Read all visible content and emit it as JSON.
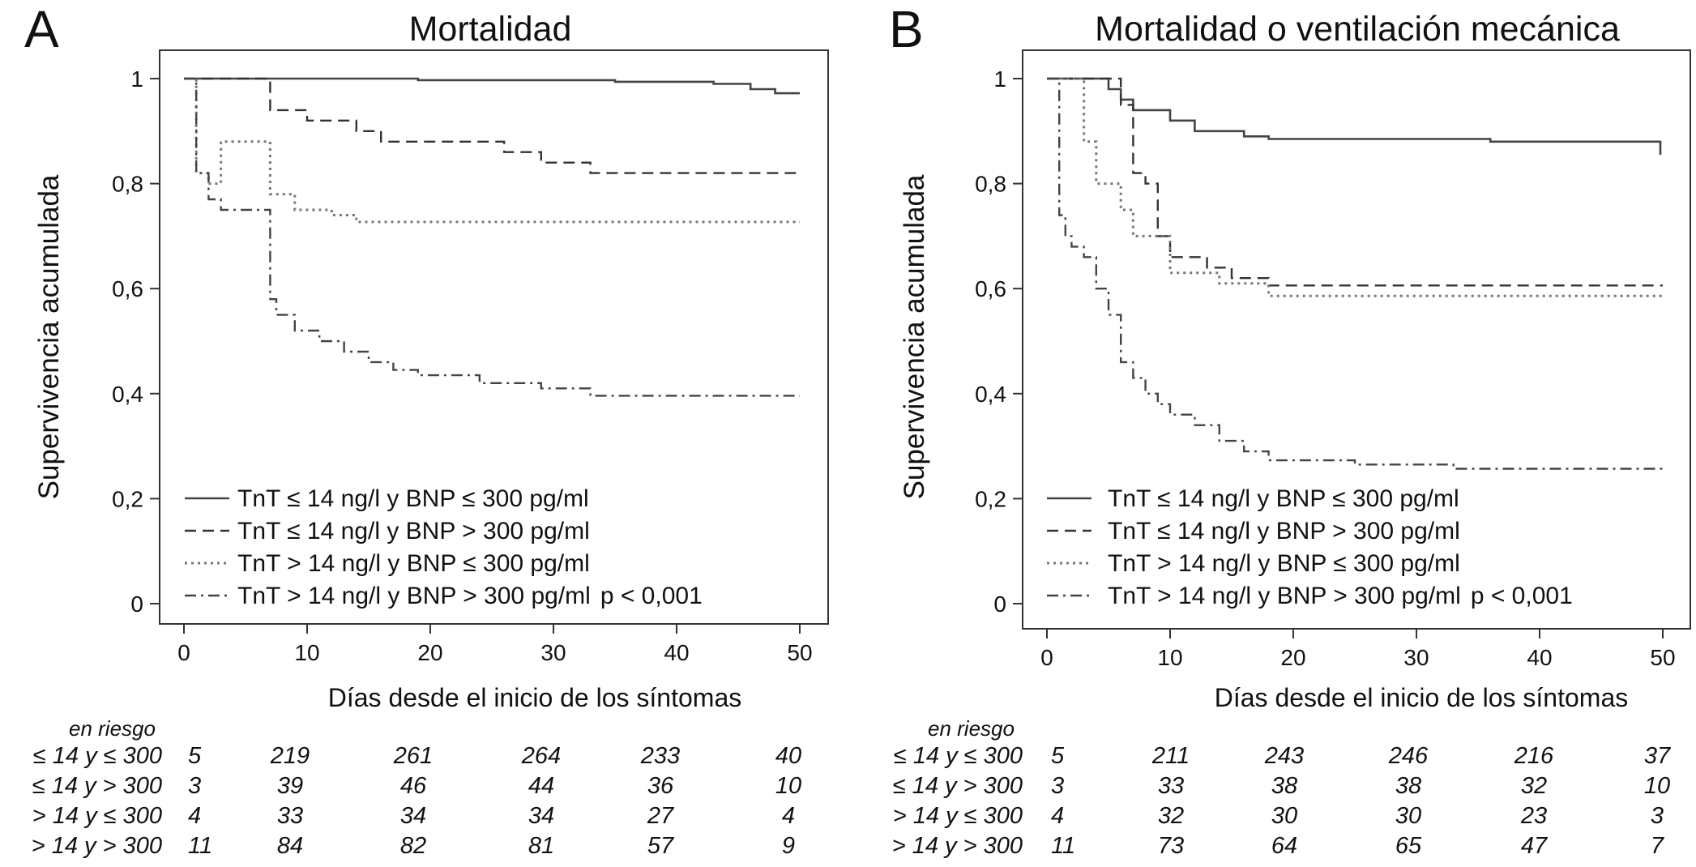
{
  "chart_data": [
    {
      "type": "line",
      "panel_letter": "A",
      "title": "Mortalidad",
      "xlabel": "Días desde el inicio de los síntomas",
      "ylabel": "Supervivencia acumulada",
      "xlim": [
        0,
        50
      ],
      "ylim": [
        0,
        1
      ],
      "xticks": [
        "0",
        "10",
        "20",
        "30",
        "40",
        "50"
      ],
      "yticks": [
        "0",
        "0,2",
        "0,4",
        "0,6",
        "0,8",
        "1"
      ],
      "legend_location": "bottom-left",
      "p_value": "p < 0,001",
      "series": [
        {
          "name": "TnT ≤ 14 ng/l y BNP ≤ 300 pg/ml",
          "style": "solid",
          "points": [
            [
              0,
              1
            ],
            [
              19,
              1
            ],
            [
              19,
              0.997
            ],
            [
              35,
              0.997
            ],
            [
              35,
              0.994
            ],
            [
              43,
              0.994
            ],
            [
              43,
              0.99
            ],
            [
              46,
              0.99
            ],
            [
              46,
              0.98
            ],
            [
              48,
              0.98
            ],
            [
              48,
              0.972
            ],
            [
              50,
              0.972
            ]
          ]
        },
        {
          "name": "TnT ≤ 14 ng/l y BNP > 300 pg/ml",
          "style": "dashed",
          "points": [
            [
              0,
              1
            ],
            [
              7,
              1
            ],
            [
              7,
              0.94
            ],
            [
              10,
              0.94
            ],
            [
              10,
              0.92
            ],
            [
              14,
              0.92
            ],
            [
              14,
              0.9
            ],
            [
              16,
              0.9
            ],
            [
              16,
              0.88
            ],
            [
              26,
              0.88
            ],
            [
              26,
              0.86
            ],
            [
              29,
              0.86
            ],
            [
              29,
              0.84
            ],
            [
              33,
              0.84
            ],
            [
              33,
              0.82
            ],
            [
              50,
              0.82
            ]
          ]
        },
        {
          "name": "TnT > 14 ng/l y BNP ≤ 300 pg/ml",
          "style": "dotted",
          "points": [
            [
              0,
              1
            ],
            [
              1,
              1
            ],
            [
              1,
              0.82
            ],
            [
              2,
              0.82
            ],
            [
              2,
              0.8
            ],
            [
              3,
              0.8
            ],
            [
              3,
              0.88
            ],
            [
              7,
              0.88
            ],
            [
              7,
              0.78
            ],
            [
              9,
              0.78
            ],
            [
              9,
              0.75
            ],
            [
              12,
              0.75
            ],
            [
              12,
              0.74
            ],
            [
              14,
              0.74
            ],
            [
              14,
              0.727
            ],
            [
              50,
              0.727
            ]
          ]
        },
        {
          "name": "TnT > 14 ng/l y BNP > 300 pg/ml",
          "style": "dashdot",
          "points": [
            [
              0,
              1
            ],
            [
              1,
              1
            ],
            [
              1,
              0.82
            ],
            [
              2,
              0.82
            ],
            [
              2,
              0.77
            ],
            [
              3,
              0.77
            ],
            [
              3,
              0.75
            ],
            [
              7,
              0.75
            ],
            [
              7,
              0.58
            ],
            [
              7.5,
              0.58
            ],
            [
              7.5,
              0.55
            ],
            [
              9,
              0.55
            ],
            [
              9,
              0.52
            ],
            [
              11,
              0.52
            ],
            [
              11,
              0.5
            ],
            [
              13,
              0.5
            ],
            [
              13,
              0.48
            ],
            [
              15,
              0.48
            ],
            [
              15,
              0.46
            ],
            [
              17,
              0.46
            ],
            [
              17,
              0.445
            ],
            [
              19,
              0.445
            ],
            [
              19,
              0.435
            ],
            [
              24,
              0.435
            ],
            [
              24,
              0.42
            ],
            [
              29,
              0.42
            ],
            [
              29,
              0.41
            ],
            [
              33,
              0.41
            ],
            [
              33,
              0.396
            ],
            [
              50,
              0.396
            ]
          ]
        }
      ],
      "risk_table": {
        "header": "en riesgo",
        "rows": [
          {
            "label": "≤ 14 y ≤ 300",
            "values": [
              "5",
              "219",
              "261",
              "264",
              "233",
              "40"
            ]
          },
          {
            "label": "≤ 14  y > 300",
            "values": [
              "3",
              "39",
              "46",
              "44",
              "36",
              "10"
            ]
          },
          {
            "label": "> 14  y ≤ 300",
            "values": [
              "4",
              "33",
              "34",
              "34",
              "27",
              "4"
            ]
          },
          {
            "label": "> 14  y > 300",
            "values": [
              "11",
              "84",
              "82",
              "81",
              "57",
              "9"
            ]
          }
        ]
      }
    },
    {
      "type": "line",
      "panel_letter": "B",
      "title": "Mortalidad o ventilación mecánica",
      "xlabel": "Días desde el inicio de los síntomas",
      "ylabel": "Supervivencia acumulada",
      "xlim": [
        0,
        50
      ],
      "ylim": [
        0,
        1
      ],
      "xticks": [
        "0",
        "10",
        "20",
        "30",
        "40",
        "50"
      ],
      "yticks": [
        "0",
        "0,2",
        "0,4",
        "0,6",
        "0,8",
        "1"
      ],
      "legend_location": "bottom-left",
      "p_value": "p < 0,001",
      "series": [
        {
          "name": "TnT ≤ 14 ng/l y BNP ≤ 300 pg/ml",
          "style": "solid",
          "points": [
            [
              0,
              1
            ],
            [
              5,
              1
            ],
            [
              5,
              0.98
            ],
            [
              6,
              0.98
            ],
            [
              6,
              0.96
            ],
            [
              7,
              0.96
            ],
            [
              7,
              0.94
            ],
            [
              10,
              0.94
            ],
            [
              10,
              0.92
            ],
            [
              12,
              0.92
            ],
            [
              12,
              0.9
            ],
            [
              16,
              0.9
            ],
            [
              16,
              0.89
            ],
            [
              18,
              0.89
            ],
            [
              18,
              0.885
            ],
            [
              36,
              0.885
            ],
            [
              36,
              0.88
            ],
            [
              49.8,
              0.88
            ],
            [
              49.8,
              0.855
            ]
          ]
        },
        {
          "name": "TnT ≤ 14 ng/l y BNP > 300 pg/ml",
          "style": "dashed",
          "points": [
            [
              0,
              1
            ],
            [
              6,
              1
            ],
            [
              6,
              0.95
            ],
            [
              7,
              0.95
            ],
            [
              7,
              0.82
            ],
            [
              8,
              0.82
            ],
            [
              8,
              0.8
            ],
            [
              9,
              0.8
            ],
            [
              9,
              0.7
            ],
            [
              10,
              0.7
            ],
            [
              10,
              0.66
            ],
            [
              13,
              0.66
            ],
            [
              13,
              0.64
            ],
            [
              15,
              0.64
            ],
            [
              15,
              0.62
            ],
            [
              18,
              0.62
            ],
            [
              18,
              0.606
            ],
            [
              50,
              0.606
            ]
          ]
        },
        {
          "name": "TnT > 14 ng/l y BNP ≤ 300 pg/ml",
          "style": "dotted",
          "points": [
            [
              0,
              1
            ],
            [
              3,
              1
            ],
            [
              3,
              0.88
            ],
            [
              4,
              0.88
            ],
            [
              4,
              0.8
            ],
            [
              6,
              0.8
            ],
            [
              6,
              0.75
            ],
            [
              7,
              0.75
            ],
            [
              7,
              0.7
            ],
            [
              10,
              0.7
            ],
            [
              10,
              0.63
            ],
            [
              14,
              0.63
            ],
            [
              14,
              0.61
            ],
            [
              18,
              0.61
            ],
            [
              18,
              0.586
            ],
            [
              50,
              0.586
            ]
          ]
        },
        {
          "name": "TnT > 14 ng/l y BNP > 300 pg/ml",
          "style": "dashdot",
          "points": [
            [
              0,
              1
            ],
            [
              1,
              1
            ],
            [
              1,
              0.74
            ],
            [
              1.5,
              0.74
            ],
            [
              1.5,
              0.7
            ],
            [
              2,
              0.7
            ],
            [
              2,
              0.68
            ],
            [
              3,
              0.68
            ],
            [
              3,
              0.66
            ],
            [
              4,
              0.66
            ],
            [
              4,
              0.6
            ],
            [
              5,
              0.6
            ],
            [
              5,
              0.55
            ],
            [
              6,
              0.55
            ],
            [
              6,
              0.46
            ],
            [
              7,
              0.46
            ],
            [
              7,
              0.43
            ],
            [
              8,
              0.43
            ],
            [
              8,
              0.4
            ],
            [
              9,
              0.4
            ],
            [
              9,
              0.38
            ],
            [
              10,
              0.38
            ],
            [
              10,
              0.36
            ],
            [
              12,
              0.36
            ],
            [
              12,
              0.34
            ],
            [
              14,
              0.34
            ],
            [
              14,
              0.31
            ],
            [
              16,
              0.31
            ],
            [
              16,
              0.29
            ],
            [
              18,
              0.29
            ],
            [
              18,
              0.273
            ],
            [
              25,
              0.273
            ],
            [
              25,
              0.265
            ],
            [
              33,
              0.265
            ],
            [
              33,
              0.257
            ],
            [
              50,
              0.257
            ]
          ]
        }
      ],
      "risk_table": {
        "header": "en riesgo",
        "rows": [
          {
            "label": "≤ 14 y ≤ 300",
            "values": [
              "5",
              "211",
              "243",
              "246",
              "216",
              "37"
            ]
          },
          {
            "label": "≤ 14  y > 300",
            "values": [
              "3",
              "33",
              "38",
              "38",
              "32",
              "10"
            ]
          },
          {
            "label": "> 14 y ≤ 300",
            "values": [
              "4",
              "32",
              "30",
              "30",
              "23",
              "3"
            ]
          },
          {
            "label": "> 14  y > 300",
            "values": [
              "11",
              "73",
              "64",
              "65",
              "47",
              "7"
            ]
          }
        ]
      }
    }
  ]
}
